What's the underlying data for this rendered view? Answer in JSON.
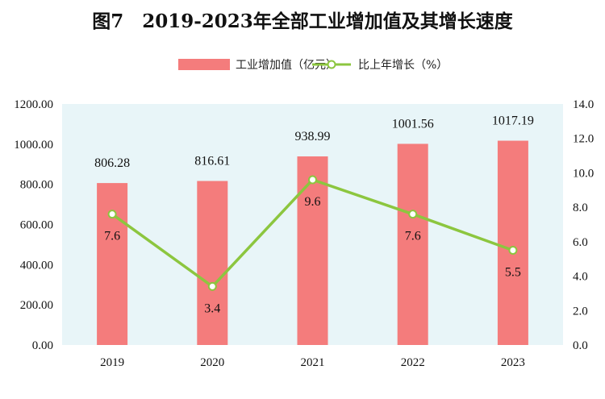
{
  "chart_data": {
    "type": "bar",
    "title": "图7　2019-2023年全部工业增加值及其增长速度",
    "categories": [
      "2019",
      "2020",
      "2021",
      "2022",
      "2023"
    ],
    "series": [
      {
        "name": "工业增加值（亿元）",
        "type": "bar",
        "axis": "left",
        "values": [
          806.28,
          816.61,
          938.99,
          1001.56,
          1017.19
        ],
        "labels": [
          "806.28",
          "816.61",
          "938.99",
          "1001.56",
          "1017.19"
        ],
        "color": "#f47c7c"
      },
      {
        "name": "比上年增长（%）",
        "type": "line",
        "axis": "right",
        "values": [
          7.6,
          3.4,
          9.6,
          7.6,
          5.5
        ],
        "labels": [
          "7.6",
          "3.4",
          "9.6",
          "7.6",
          "5.5"
        ],
        "color": "#8cc63f"
      }
    ],
    "y_left": {
      "lim": [
        0,
        1200
      ],
      "ticks": [
        "0.00",
        "200.00",
        "400.00",
        "600.00",
        "800.00",
        "1000.00",
        "1200.00"
      ]
    },
    "y_right": {
      "lim": [
        0,
        14
      ],
      "ticks": [
        "0.0",
        "2.0",
        "4.0",
        "6.0",
        "8.0",
        "10.0",
        "12.0",
        "14.0"
      ]
    },
    "legend_position": "top-center",
    "plot_background": "#e8f5f8",
    "grid": false
  }
}
